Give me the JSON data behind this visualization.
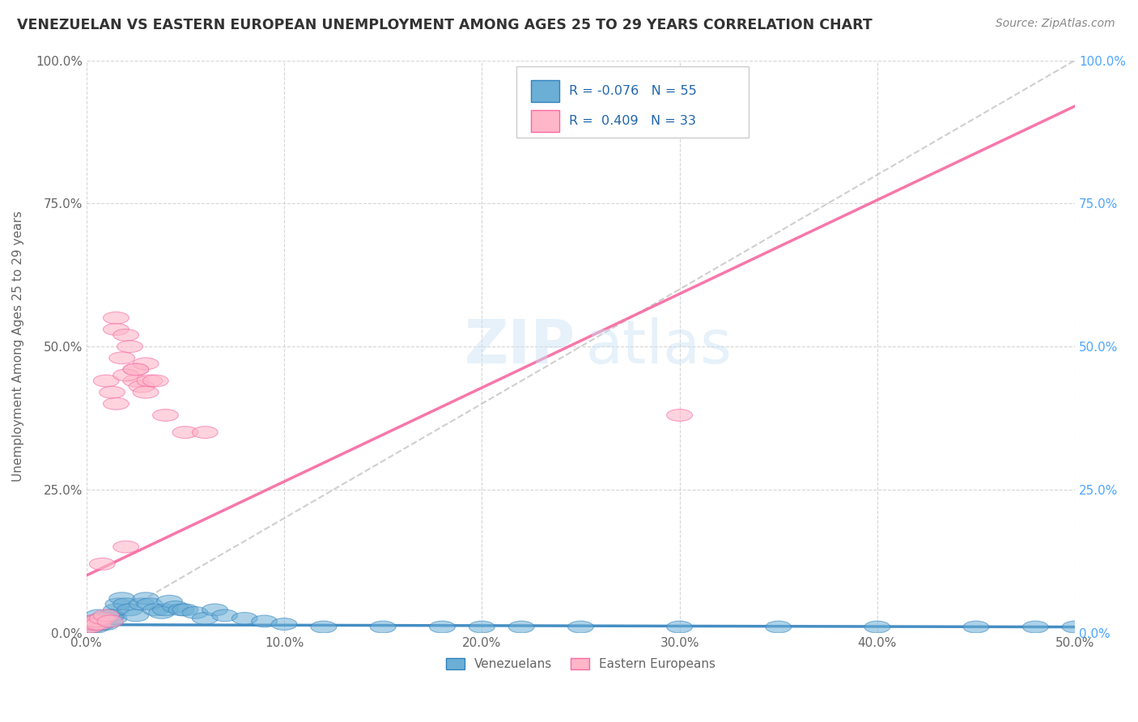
{
  "title": "VENEZUELAN VS EASTERN EUROPEAN UNEMPLOYMENT AMONG AGES 25 TO 29 YEARS CORRELATION CHART",
  "source": "Source: ZipAtlas.com",
  "ylabel": "Unemployment Among Ages 25 to 29 years",
  "legend_label1": "Venezuelans",
  "legend_label2": "Eastern Europeans",
  "R1": -0.076,
  "N1": 55,
  "R2": 0.409,
  "N2": 33,
  "color_blue": "#6baed6",
  "color_blue_dark": "#3182bd",
  "color_pink": "#ffb6c8",
  "color_pink_dark": "#f768a1",
  "color_legend_text": "#2166ac",
  "watermark_zip": "ZIP",
  "watermark_atlas": "atlas",
  "venezuelan_x": [
    0.0,
    0.001,
    0.002,
    0.003,
    0.003,
    0.004,
    0.005,
    0.005,
    0.006,
    0.007,
    0.008,
    0.008,
    0.009,
    0.01,
    0.01,
    0.011,
    0.012,
    0.012,
    0.013,
    0.014,
    0.015,
    0.016,
    0.018,
    0.02,
    0.022,
    0.025,
    0.028,
    0.03,
    0.032,
    0.035,
    0.038,
    0.04,
    0.042,
    0.045,
    0.048,
    0.05,
    0.055,
    0.06,
    0.065,
    0.07,
    0.08,
    0.09,
    0.1,
    0.12,
    0.15,
    0.18,
    0.2,
    0.22,
    0.25,
    0.3,
    0.35,
    0.4,
    0.45,
    0.48,
    0.5
  ],
  "venezuelan_y": [
    0.01,
    0.01,
    0.015,
    0.01,
    0.02,
    0.015,
    0.01,
    0.02,
    0.03,
    0.02,
    0.025,
    0.015,
    0.02,
    0.015,
    0.025,
    0.02,
    0.03,
    0.025,
    0.03,
    0.025,
    0.04,
    0.05,
    0.06,
    0.05,
    0.04,
    0.03,
    0.05,
    0.06,
    0.05,
    0.04,
    0.035,
    0.04,
    0.055,
    0.045,
    0.04,
    0.04,
    0.035,
    0.025,
    0.04,
    0.03,
    0.025,
    0.02,
    0.015,
    0.01,
    0.01,
    0.01,
    0.01,
    0.01,
    0.01,
    0.01,
    0.01,
    0.01,
    0.01,
    0.01,
    0.01
  ],
  "eastern_x": [
    0.0,
    0.001,
    0.002,
    0.003,
    0.004,
    0.005,
    0.006,
    0.008,
    0.01,
    0.012,
    0.013,
    0.015,
    0.015,
    0.018,
    0.02,
    0.022,
    0.025,
    0.025,
    0.028,
    0.03,
    0.032,
    0.035,
    0.008,
    0.01,
    0.015,
    0.02,
    0.025,
    0.03,
    0.04,
    0.05,
    0.06,
    0.3,
    0.02
  ],
  "eastern_y": [
    0.01,
    0.015,
    0.01,
    0.02,
    0.015,
    0.02,
    0.015,
    0.025,
    0.03,
    0.02,
    0.42,
    0.53,
    0.55,
    0.48,
    0.52,
    0.5,
    0.44,
    0.46,
    0.43,
    0.47,
    0.44,
    0.44,
    0.12,
    0.44,
    0.4,
    0.45,
    0.46,
    0.42,
    0.38,
    0.35,
    0.35,
    0.38,
    0.15
  ],
  "blue_line_x": [
    0.0,
    0.5
  ],
  "blue_line_y": [
    0.014,
    0.01
  ],
  "pink_line_x": [
    0.0,
    0.5
  ],
  "pink_line_y": [
    0.1,
    0.92
  ],
  "dashed_line_x": [
    0.0,
    0.5
  ],
  "dashed_line_y": [
    0.0,
    1.0
  ],
  "xlim": [
    0.0,
    0.5
  ],
  "ylim": [
    0.0,
    1.0
  ],
  "grid_color": "#cccccc",
  "background_color": "#ffffff",
  "title_color": "#333333",
  "axis_color": "#666666",
  "right_axis_color": "#4da6ff"
}
